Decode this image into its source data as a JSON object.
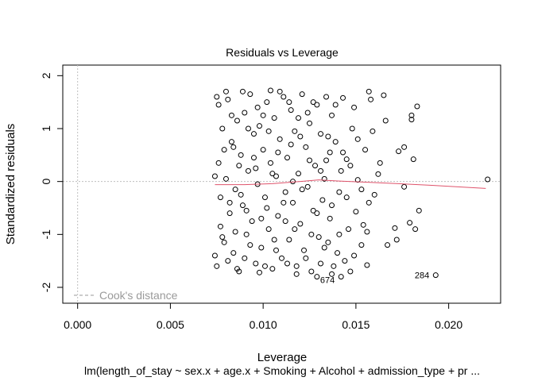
{
  "chart_data": {
    "type": "scatter",
    "title": "Residuals vs Leverage",
    "xlabel": "Leverage",
    "ylabel": "Standardized residuals",
    "caption": "lm(length_of_stay ~ sex.x + age.x + Smoking + Alcohol + admission_type + pr ...",
    "xlim": [
      -0.0008,
      0.0228
    ],
    "ylim": [
      -2.3,
      2.2
    ],
    "x_ticks": [
      "0.000",
      "0.005",
      "0.010",
      "0.015",
      "0.020"
    ],
    "y_ticks": [
      "-2",
      "-1",
      "0",
      "1",
      "2"
    ],
    "grid": false,
    "legend": {
      "label": "Cook's distance",
      "position": "bottom-left"
    },
    "point_color": "#000000",
    "smooth_color": "#df536b",
    "ref_line_color": "#bebebe",
    "smooth_line": [
      {
        "x": 0.0074,
        "y": -0.06
      },
      {
        "x": 0.009,
        "y": -0.06
      },
      {
        "x": 0.0105,
        "y": -0.04
      },
      {
        "x": 0.012,
        "y": 0.0
      },
      {
        "x": 0.013,
        "y": 0.03
      },
      {
        "x": 0.014,
        "y": 0.01
      },
      {
        "x": 0.016,
        "y": -0.02
      },
      {
        "x": 0.019,
        "y": -0.07
      },
      {
        "x": 0.022,
        "y": -0.13
      }
    ],
    "labeled_points": [
      {
        "label": "674",
        "x": 0.0142,
        "y": -1.8
      },
      {
        "label": "284",
        "x": 0.0193,
        "y": -1.77
      }
    ],
    "points": [
      {
        "x": 0.0221,
        "y": 0.04
      },
      {
        "x": 0.0193,
        "y": -1.77
      },
      {
        "x": 0.0142,
        "y": -1.8
      },
      {
        "x": 0.0184,
        "y": -0.55
      },
      {
        "x": 0.0182,
        "y": -0.9
      },
      {
        "x": 0.0179,
        "y": -0.78
      },
      {
        "x": 0.0181,
        "y": 0.42
      },
      {
        "x": 0.0173,
        "y": 0.57
      },
      {
        "x": 0.0176,
        "y": 0.65
      },
      {
        "x": 0.0171,
        "y": -0.88
      },
      {
        "x": 0.0172,
        "y": -1.1
      },
      {
        "x": 0.018,
        "y": 1.17
      },
      {
        "x": 0.018,
        "y": 1.25
      },
      {
        "x": 0.0183,
        "y": 1.42
      },
      {
        "x": 0.0176,
        "y": -0.1
      },
      {
        "x": 0.0166,
        "y": 1.15
      },
      {
        "x": 0.0165,
        "y": 1.63
      },
      {
        "x": 0.0167,
        "y": -1.2
      },
      {
        "x": 0.0163,
        "y": 0.35
      },
      {
        "x": 0.0162,
        "y": 0.14
      },
      {
        "x": 0.016,
        "y": -0.25
      },
      {
        "x": 0.0157,
        "y": 1.7
      },
      {
        "x": 0.0156,
        "y": -1.58
      },
      {
        "x": 0.0155,
        "y": 0.6
      },
      {
        "x": 0.0156,
        "y": -0.95
      },
      {
        "x": 0.0158,
        "y": 1.55
      },
      {
        "x": 0.0154,
        "y": -0.82
      },
      {
        "x": 0.0159,
        "y": 0.95
      },
      {
        "x": 0.0157,
        "y": -0.4
      },
      {
        "x": 0.0153,
        "y": -1.2
      },
      {
        "x": 0.0151,
        "y": 0.03
      },
      {
        "x": 0.0149,
        "y": 1.4
      },
      {
        "x": 0.015,
        "y": -0.57
      },
      {
        "x": 0.0147,
        "y": -1.7
      },
      {
        "x": 0.0148,
        "y": 1.0
      },
      {
        "x": 0.0146,
        "y": -0.9
      },
      {
        "x": 0.0145,
        "y": 0.42
      },
      {
        "x": 0.0144,
        "y": -1.5
      },
      {
        "x": 0.0143,
        "y": 1.58
      },
      {
        "x": 0.0142,
        "y": 0.2
      },
      {
        "x": 0.0141,
        "y": -0.2
      },
      {
        "x": 0.014,
        "y": -1.35
      },
      {
        "x": 0.0139,
        "y": 0.75
      },
      {
        "x": 0.0138,
        "y": -1.6
      },
      {
        "x": 0.0137,
        "y": 1.25
      },
      {
        "x": 0.0136,
        "y": -0.7
      },
      {
        "x": 0.0136,
        "y": 0.55
      },
      {
        "x": 0.0135,
        "y": -1.15
      },
      {
        "x": 0.0134,
        "y": 1.6
      },
      {
        "x": 0.0133,
        "y": 0.05
      },
      {
        "x": 0.0132,
        "y": -0.35
      },
      {
        "x": 0.0131,
        "y": -1.55
      },
      {
        "x": 0.0131,
        "y": 0.9
      },
      {
        "x": 0.013,
        "y": -1.05
      },
      {
        "x": 0.0129,
        "y": 1.45
      },
      {
        "x": 0.0128,
        "y": 0.3
      },
      {
        "x": 0.0127,
        "y": -0.55
      },
      {
        "x": 0.0126,
        "y": -1.7
      },
      {
        "x": 0.0125,
        "y": 1.1
      },
      {
        "x": 0.0124,
        "y": -0.1
      },
      {
        "x": 0.0123,
        "y": 0.65
      },
      {
        "x": 0.0122,
        "y": -1.3
      },
      {
        "x": 0.0121,
        "y": 1.65
      },
      {
        "x": 0.012,
        "y": -0.8
      },
      {
        "x": 0.0119,
        "y": 0.15
      },
      {
        "x": 0.0118,
        "y": -1.6
      },
      {
        "x": 0.0117,
        "y": 0.95
      },
      {
        "x": 0.0116,
        "y": -0.4
      },
      {
        "x": 0.0115,
        "y": 1.35
      },
      {
        "x": 0.0114,
        "y": -1.1
      },
      {
        "x": 0.0113,
        "y": 0.45
      },
      {
        "x": 0.0112,
        "y": -0.2
      },
      {
        "x": 0.0111,
        "y": 1.6
      },
      {
        "x": 0.011,
        "y": -1.45
      },
      {
        "x": 0.0109,
        "y": 0.8
      },
      {
        "x": 0.0108,
        "y": -0.65
      },
      {
        "x": 0.0107,
        "y": 0.1
      },
      {
        "x": 0.0106,
        "y": 1.2
      },
      {
        "x": 0.0105,
        "y": -1.65
      },
      {
        "x": 0.0104,
        "y": 0.35
      },
      {
        "x": 0.0103,
        "y": -0.9
      },
      {
        "x": 0.0102,
        "y": 1.5
      },
      {
        "x": 0.0101,
        "y": -0.3
      },
      {
        "x": 0.01,
        "y": 0.6
      },
      {
        "x": 0.0099,
        "y": -1.25
      },
      {
        "x": 0.0098,
        "y": 1.05
      },
      {
        "x": 0.0097,
        "y": -0.05
      },
      {
        "x": 0.0096,
        "y": -1.55
      },
      {
        "x": 0.0095,
        "y": 0.9
      },
      {
        "x": 0.0094,
        "y": -0.75
      },
      {
        "x": 0.0093,
        "y": 1.65
      },
      {
        "x": 0.0092,
        "y": 0.2
      },
      {
        "x": 0.0091,
        "y": -1.0
      },
      {
        "x": 0.009,
        "y": 1.3
      },
      {
        "x": 0.0089,
        "y": -0.45
      },
      {
        "x": 0.0088,
        "y": 0.5
      },
      {
        "x": 0.0087,
        "y": -1.7
      },
      {
        "x": 0.0086,
        "y": 1.15
      },
      {
        "x": 0.0085,
        "y": -0.15
      },
      {
        "x": 0.0084,
        "y": -1.35
      },
      {
        "x": 0.0083,
        "y": 0.75
      },
      {
        "x": 0.0082,
        "y": -0.6
      },
      {
        "x": 0.0081,
        "y": 1.55
      },
      {
        "x": 0.008,
        "y": 0.05
      },
      {
        "x": 0.0079,
        "y": -1.15
      },
      {
        "x": 0.0078,
        "y": 1.0
      },
      {
        "x": 0.0077,
        "y": -0.85
      },
      {
        "x": 0.0076,
        "y": 0.35
      },
      {
        "x": 0.0075,
        "y": -1.6
      },
      {
        "x": 0.0075,
        "y": 1.6
      },
      {
        "x": 0.0074,
        "y": 0.1
      },
      {
        "x": 0.0074,
        "y": -1.4
      },
      {
        "x": 0.0076,
        "y": 1.45
      },
      {
        "x": 0.0077,
        "y": -0.3
      },
      {
        "x": 0.0079,
        "y": 0.6
      },
      {
        "x": 0.0081,
        "y": -1.5
      },
      {
        "x": 0.0083,
        "y": 1.25
      },
      {
        "x": 0.0085,
        "y": -0.95
      },
      {
        "x": 0.0087,
        "y": 0.3
      },
      {
        "x": 0.0089,
        "y": 1.7
      },
      {
        "x": 0.0091,
        "y": -0.55
      },
      {
        "x": 0.0093,
        "y": -1.2
      },
      {
        "x": 0.0095,
        "y": 0.45
      },
      {
        "x": 0.0097,
        "y": 1.4
      },
      {
        "x": 0.0099,
        "y": -0.7
      },
      {
        "x": 0.0101,
        "y": -1.6
      },
      {
        "x": 0.0103,
        "y": 0.95
      },
      {
        "x": 0.0105,
        "y": 0.15
      },
      {
        "x": 0.0107,
        "y": -1.3
      },
      {
        "x": 0.0109,
        "y": 1.7
      },
      {
        "x": 0.0111,
        "y": -0.4
      },
      {
        "x": 0.0113,
        "y": -1.55
      },
      {
        "x": 0.0115,
        "y": 0.7
      },
      {
        "x": 0.0117,
        "y": -0.9
      },
      {
        "x": 0.0119,
        "y": 1.2
      },
      {
        "x": 0.0121,
        "y": -0.15
      },
      {
        "x": 0.0123,
        "y": -1.45
      },
      {
        "x": 0.0125,
        "y": 0.4
      },
      {
        "x": 0.0127,
        "y": 1.5
      },
      {
        "x": 0.0129,
        "y": -0.6
      },
      {
        "x": 0.0131,
        "y": 0.2
      },
      {
        "x": 0.0133,
        "y": -1.25
      },
      {
        "x": 0.0135,
        "y": 0.85
      },
      {
        "x": 0.0137,
        "y": -0.45
      },
      {
        "x": 0.0139,
        "y": 1.45
      },
      {
        "x": 0.0141,
        "y": -1.0
      },
      {
        "x": 0.0143,
        "y": 0.55
      },
      {
        "x": 0.0145,
        "y": -0.3
      },
      {
        "x": 0.0147,
        "y": 0.3
      },
      {
        "x": 0.0149,
        "y": -1.4
      },
      {
        "x": 0.0151,
        "y": 0.8
      },
      {
        "x": 0.0153,
        "y": -0.15
      },
      {
        "x": 0.0137,
        "y": -1.75
      },
      {
        "x": 0.0129,
        "y": -1.8
      },
      {
        "x": 0.0118,
        "y": -1.75
      },
      {
        "x": 0.0104,
        "y": 1.72
      },
      {
        "x": 0.0098,
        "y": -1.72
      },
      {
        "x": 0.0086,
        "y": -1.65
      },
      {
        "x": 0.008,
        "y": 1.7
      },
      {
        "x": 0.0112,
        "y": -0.75
      },
      {
        "x": 0.0096,
        "y": 0.25
      },
      {
        "x": 0.0088,
        "y": -0.25
      },
      {
        "x": 0.0108,
        "y": 0.55
      },
      {
        "x": 0.012,
        "y": 0.85
      },
      {
        "x": 0.0102,
        "y": -0.5
      },
      {
        "x": 0.0092,
        "y": 1.0
      },
      {
        "x": 0.0084,
        "y": 0.65
      },
      {
        "x": 0.0126,
        "y": -1.0
      },
      {
        "x": 0.0134,
        "y": 0.4
      },
      {
        "x": 0.0114,
        "y": 1.5
      },
      {
        "x": 0.01,
        "y": 1.25
      },
      {
        "x": 0.009,
        "y": -1.45
      },
      {
        "x": 0.0106,
        "y": -1.1
      },
      {
        "x": 0.0116,
        "y": 0.0
      },
      {
        "x": 0.0124,
        "y": 1.3
      },
      {
        "x": 0.0082,
        "y": -0.4
      },
      {
        "x": 0.0078,
        "y": -1.05
      }
    ]
  }
}
